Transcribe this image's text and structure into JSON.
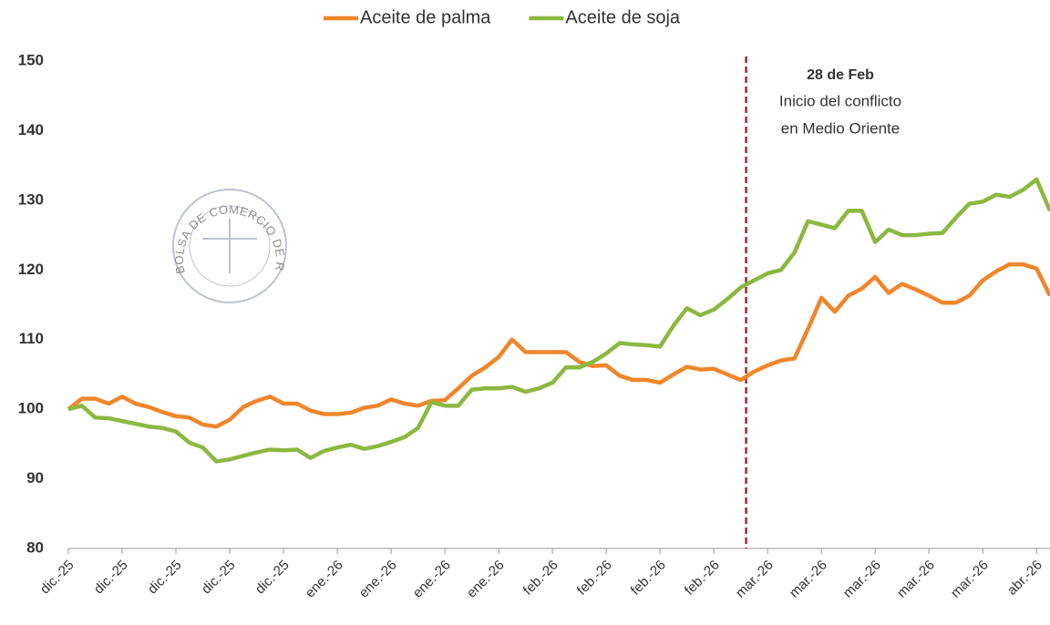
{
  "chart_data": {
    "type": "line",
    "categories": [
      "dic.-25",
      null,
      null,
      null,
      "dic.-25",
      null,
      null,
      null,
      "dic.-25",
      null,
      null,
      null,
      "dic.-25",
      null,
      null,
      null,
      "dic.-25",
      null,
      null,
      null,
      "ene.-26",
      null,
      null,
      null,
      "ene.-26",
      null,
      null,
      null,
      "ene.-26",
      null,
      null,
      null,
      "ene.-26",
      null,
      null,
      null,
      "feb.-26",
      null,
      null,
      null,
      "feb.-26",
      null,
      null,
      null,
      "feb.-26",
      null,
      null,
      null,
      "feb.-26",
      null,
      null,
      null,
      "mar.-26",
      null,
      null,
      null,
      "mar.-26",
      null,
      null,
      null,
      "mar.-26",
      null,
      null,
      null,
      "mar.-26",
      null,
      null,
      null,
      "mar.-26",
      null,
      null,
      null,
      "abr.-26",
      null
    ],
    "series": [
      {
        "name": "Aceite de palma",
        "color": "#f0862a",
        "values": [
          100,
          101.5,
          101.5,
          100.8,
          101.8,
          100.8,
          100.3,
          99.6,
          99,
          98.8,
          97.8,
          97.5,
          98.5,
          100.3,
          101.2,
          101.8,
          100.8,
          100.8,
          99.8,
          99.3,
          99.3,
          99.5,
          100.2,
          100.5,
          101.4,
          100.8,
          100.5,
          101.2,
          101.3,
          103,
          104.8,
          106,
          107.5,
          110,
          108.2,
          108.2,
          108.2,
          108.2,
          106.8,
          106.2,
          106.3,
          104.8,
          104.2,
          104.2,
          103.8,
          105,
          106.1,
          105.7,
          105.8,
          105,
          104.2,
          105.4,
          106.3,
          107,
          107.3,
          111.5,
          116,
          114,
          116.3,
          117.3,
          119,
          116.7,
          118,
          117.2,
          116.3,
          115.3,
          115.3,
          116.3,
          118.5,
          119.8,
          120.8,
          120.8,
          120.2,
          116.3
        ]
      },
      {
        "name": "Aceite de soja",
        "color": "#8cb840",
        "values": [
          100,
          100.5,
          98.8,
          98.7,
          98.3,
          97.9,
          97.5,
          97.3,
          96.8,
          95.2,
          94.5,
          92.5,
          92.8,
          93.3,
          93.8,
          94.2,
          94.1,
          94.2,
          93,
          94,
          94.5,
          94.9,
          94.3,
          94.7,
          95.3,
          96,
          97.3,
          101,
          100.5,
          100.5,
          102.8,
          103,
          103,
          103.2,
          102.5,
          103,
          103.8,
          106,
          106,
          106.8,
          108,
          109.5,
          109.3,
          109.2,
          109,
          112,
          114.5,
          113.5,
          114.3,
          115.8,
          117.5,
          118.5,
          119.5,
          120,
          122.5,
          127,
          126.5,
          126,
          128.5,
          128.5,
          124,
          125.8,
          125,
          125,
          125.2,
          125.3,
          127.5,
          129.5,
          129.8,
          130.8,
          130.5,
          131.5,
          133,
          128.5
        ]
      }
    ],
    "ylim": [
      80,
      150
    ],
    "yticks": [
      80,
      90,
      100,
      110,
      120,
      130,
      140,
      150
    ],
    "grid": false,
    "legend": "top",
    "annotation": {
      "x": 50.4,
      "title": "28 de Feb",
      "lines": [
        "Inicio del conflicto",
        "en Medio Oriente"
      ],
      "color": "#9b2d30"
    },
    "watermark": "BOLSA DE COMERCIO DE ROSARIO"
  }
}
